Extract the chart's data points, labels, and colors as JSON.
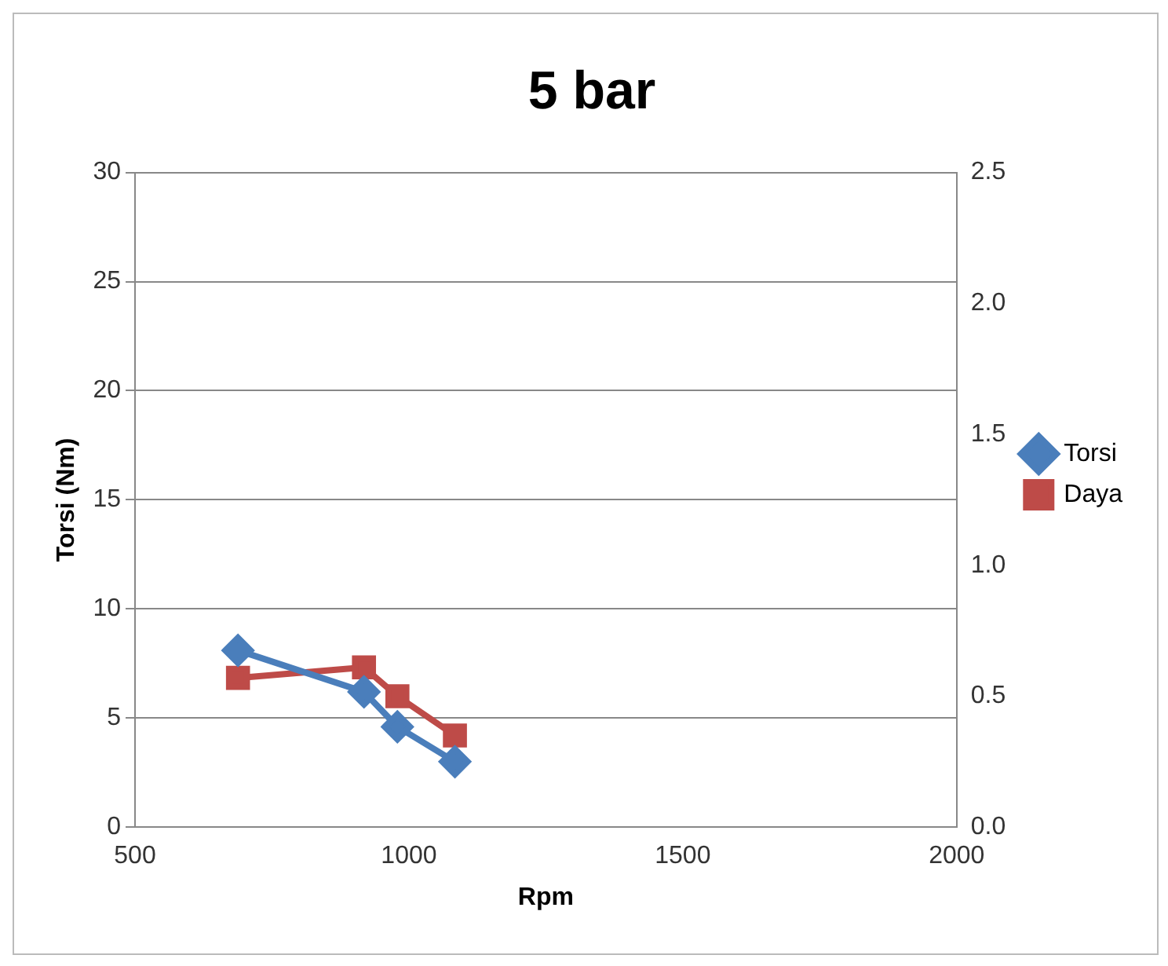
{
  "chart_data": {
    "type": "line",
    "title": "5 bar",
    "xlabel": "Rpm",
    "ylabel": "Torsi (Nm)",
    "x": [
      688,
      918,
      979,
      1084
    ],
    "series": [
      {
        "name": "Torsi",
        "color": "#4a7ebb",
        "values": [
          8.1,
          6.2,
          4.6,
          3.0
        ],
        "marker": "diamond"
      },
      {
        "name": "Daya",
        "color": "#be4b48",
        "values": [
          0.57,
          0.61,
          0.5,
          0.35
        ],
        "axis": "y2",
        "marker": "square"
      }
    ],
    "xlim": [
      500,
      2000
    ],
    "xticks": [
      500,
      1000,
      1500,
      2000
    ],
    "ylim": [
      0,
      30
    ],
    "yticks": [
      0,
      5,
      10,
      15,
      20,
      25,
      30
    ],
    "y2lim": [
      0,
      2.5
    ],
    "y2ticks": [
      {
        "value": 0,
        "label": "0.0"
      },
      {
        "value": 0.5,
        "label": "0.5"
      },
      {
        "value": 1,
        "label": "1.0"
      },
      {
        "value": 1.5,
        "label": "1.5"
      },
      {
        "value": 2,
        "label": "2.0"
      },
      {
        "value": 2.5,
        "label": "2.5"
      }
    ],
    "grid": "y",
    "legend": "right"
  }
}
